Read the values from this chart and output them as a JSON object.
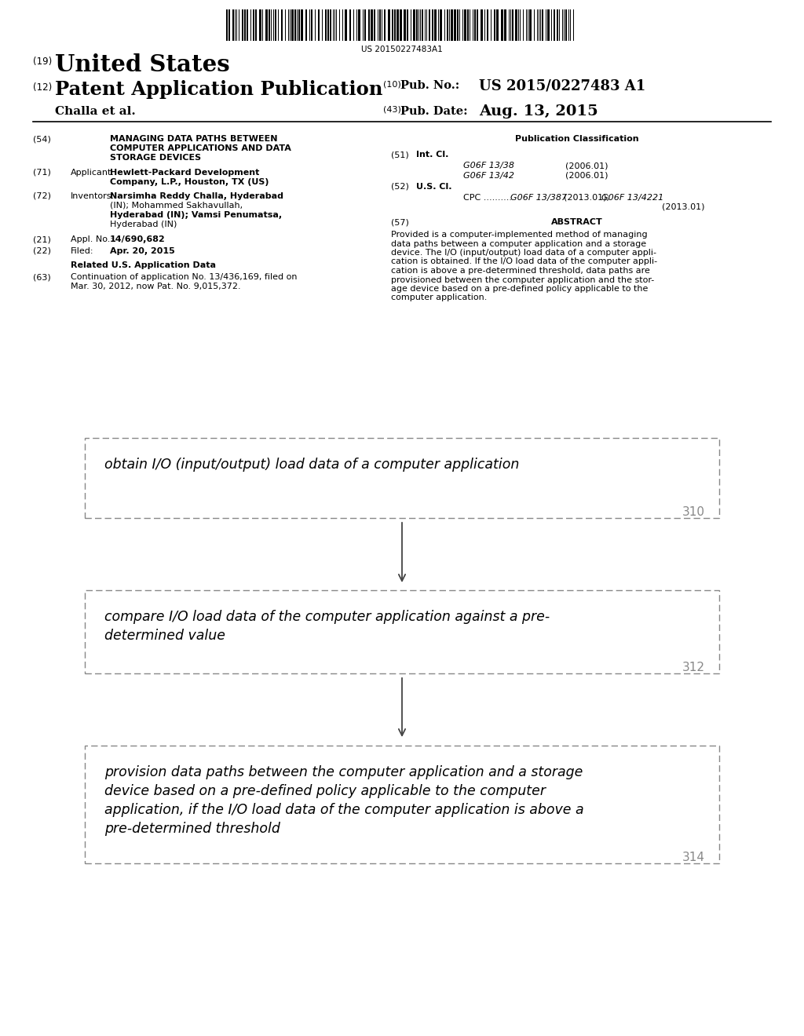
{
  "bg_color": "#ffffff",
  "barcode_text": "US 20150227483A1",
  "text_color": "#000000",
  "gray_text": "#777777",
  "box_border_color": "#888888",
  "arrow_color": "#444444",
  "title_19_small": "(19)",
  "title_19_big": "United States",
  "title_12_small": "(12)",
  "title_12_big": "Patent Application Publication",
  "pub_no_small": "(10)",
  "pub_no_label": "Pub. No.:",
  "pub_no_value": "US 2015/0227483 A1",
  "author_left": "Challa et al.",
  "pub_date_small": "(43)",
  "pub_date_label": "Pub. Date:",
  "pub_date_value": "Aug. 13, 2015",
  "sec54_num": "(54)",
  "sec54_text_line1": "MANAGING DATA PATHS BETWEEN",
  "sec54_text_line2": "COMPUTER APPLICATIONS AND DATA",
  "sec54_text_line3": "STORAGE DEVICES",
  "sec71_num": "(71)",
  "sec71_label": "Applicant:",
  "sec71_val_line1": "Hewlett-Packard Development",
  "sec71_val_line2": "Company, L.P., Houston, TX (US)",
  "sec72_num": "(72)",
  "sec72_label": "Inventors:",
  "sec72_val_line1": "Narsimha Reddy Challa, Hyderabad",
  "sec72_val_line2": "(IN); Mohammed Sakhavullah,",
  "sec72_val_line3": "Hyderabad (IN); Vamsi Penumatsa,",
  "sec72_val_line4": "Hyderabad (IN)",
  "sec21_num": "(21)",
  "sec21_label": "Appl. No.:",
  "sec21_value": "14/690,682",
  "sec22_num": "(22)",
  "sec22_label": "Filed:",
  "sec22_value": "Apr. 20, 2015",
  "related_header": "Related U.S. Application Data",
  "sec63_num": "(63)",
  "sec63_line1": "Continuation of application No. 13/436,169, filed on",
  "sec63_line2": "Mar. 30, 2012, now Pat. No. 9,015,372.",
  "pub_class_header": "Publication Classification",
  "sec51_num": "(51)",
  "sec51_label": "Int. Cl.",
  "sec51_code1": "G06F 13/38",
  "sec51_date1": "(2006.01)",
  "sec51_code2": "G06F 13/42",
  "sec51_date2": "(2006.01)",
  "sec52_num": "(52)",
  "sec52_label": "U.S. Cl.",
  "sec52_cpc_prefix": "CPC ..........",
  "sec52_cpc_code1": "G06F 13/387",
  "sec52_cpc_mid": "(2013.01);",
  "sec52_cpc_code2": "G06F 13/4221",
  "sec52_cpc_end": "(2013.01)",
  "sec57_num": "(57)",
  "sec57_label": "ABSTRACT",
  "abstract_line1": "Provided is a computer-implemented method of managing",
  "abstract_line2": "data paths between a computer application and a storage",
  "abstract_line3": "device. The I/O (input/output) load data of a computer appli-",
  "abstract_line4": "cation is obtained. If the I/O load data of the computer appli-",
  "abstract_line5": "cation is above a pre-determined threshold, data paths are",
  "abstract_line6": "provisioned between the computer application and the stor-",
  "abstract_line7": "age device based on a pre-defined policy applicable to the",
  "abstract_line8": "computer application.",
  "box1_text": "obtain I/O (input/output) load data of a computer application",
  "box1_num": "310",
  "box2_line1": "compare I/O load data of the computer application against a pre-",
  "box2_line2": "determined value",
  "box2_num": "312",
  "box3_line1": "provision data paths between the computer application and a storage",
  "box3_line2": "device based on a pre-defined policy applicable to the computer",
  "box3_line3": "application, if the I/O load data of the computer application is above a",
  "box3_line4": "pre-determined threshold",
  "box3_num": "314"
}
